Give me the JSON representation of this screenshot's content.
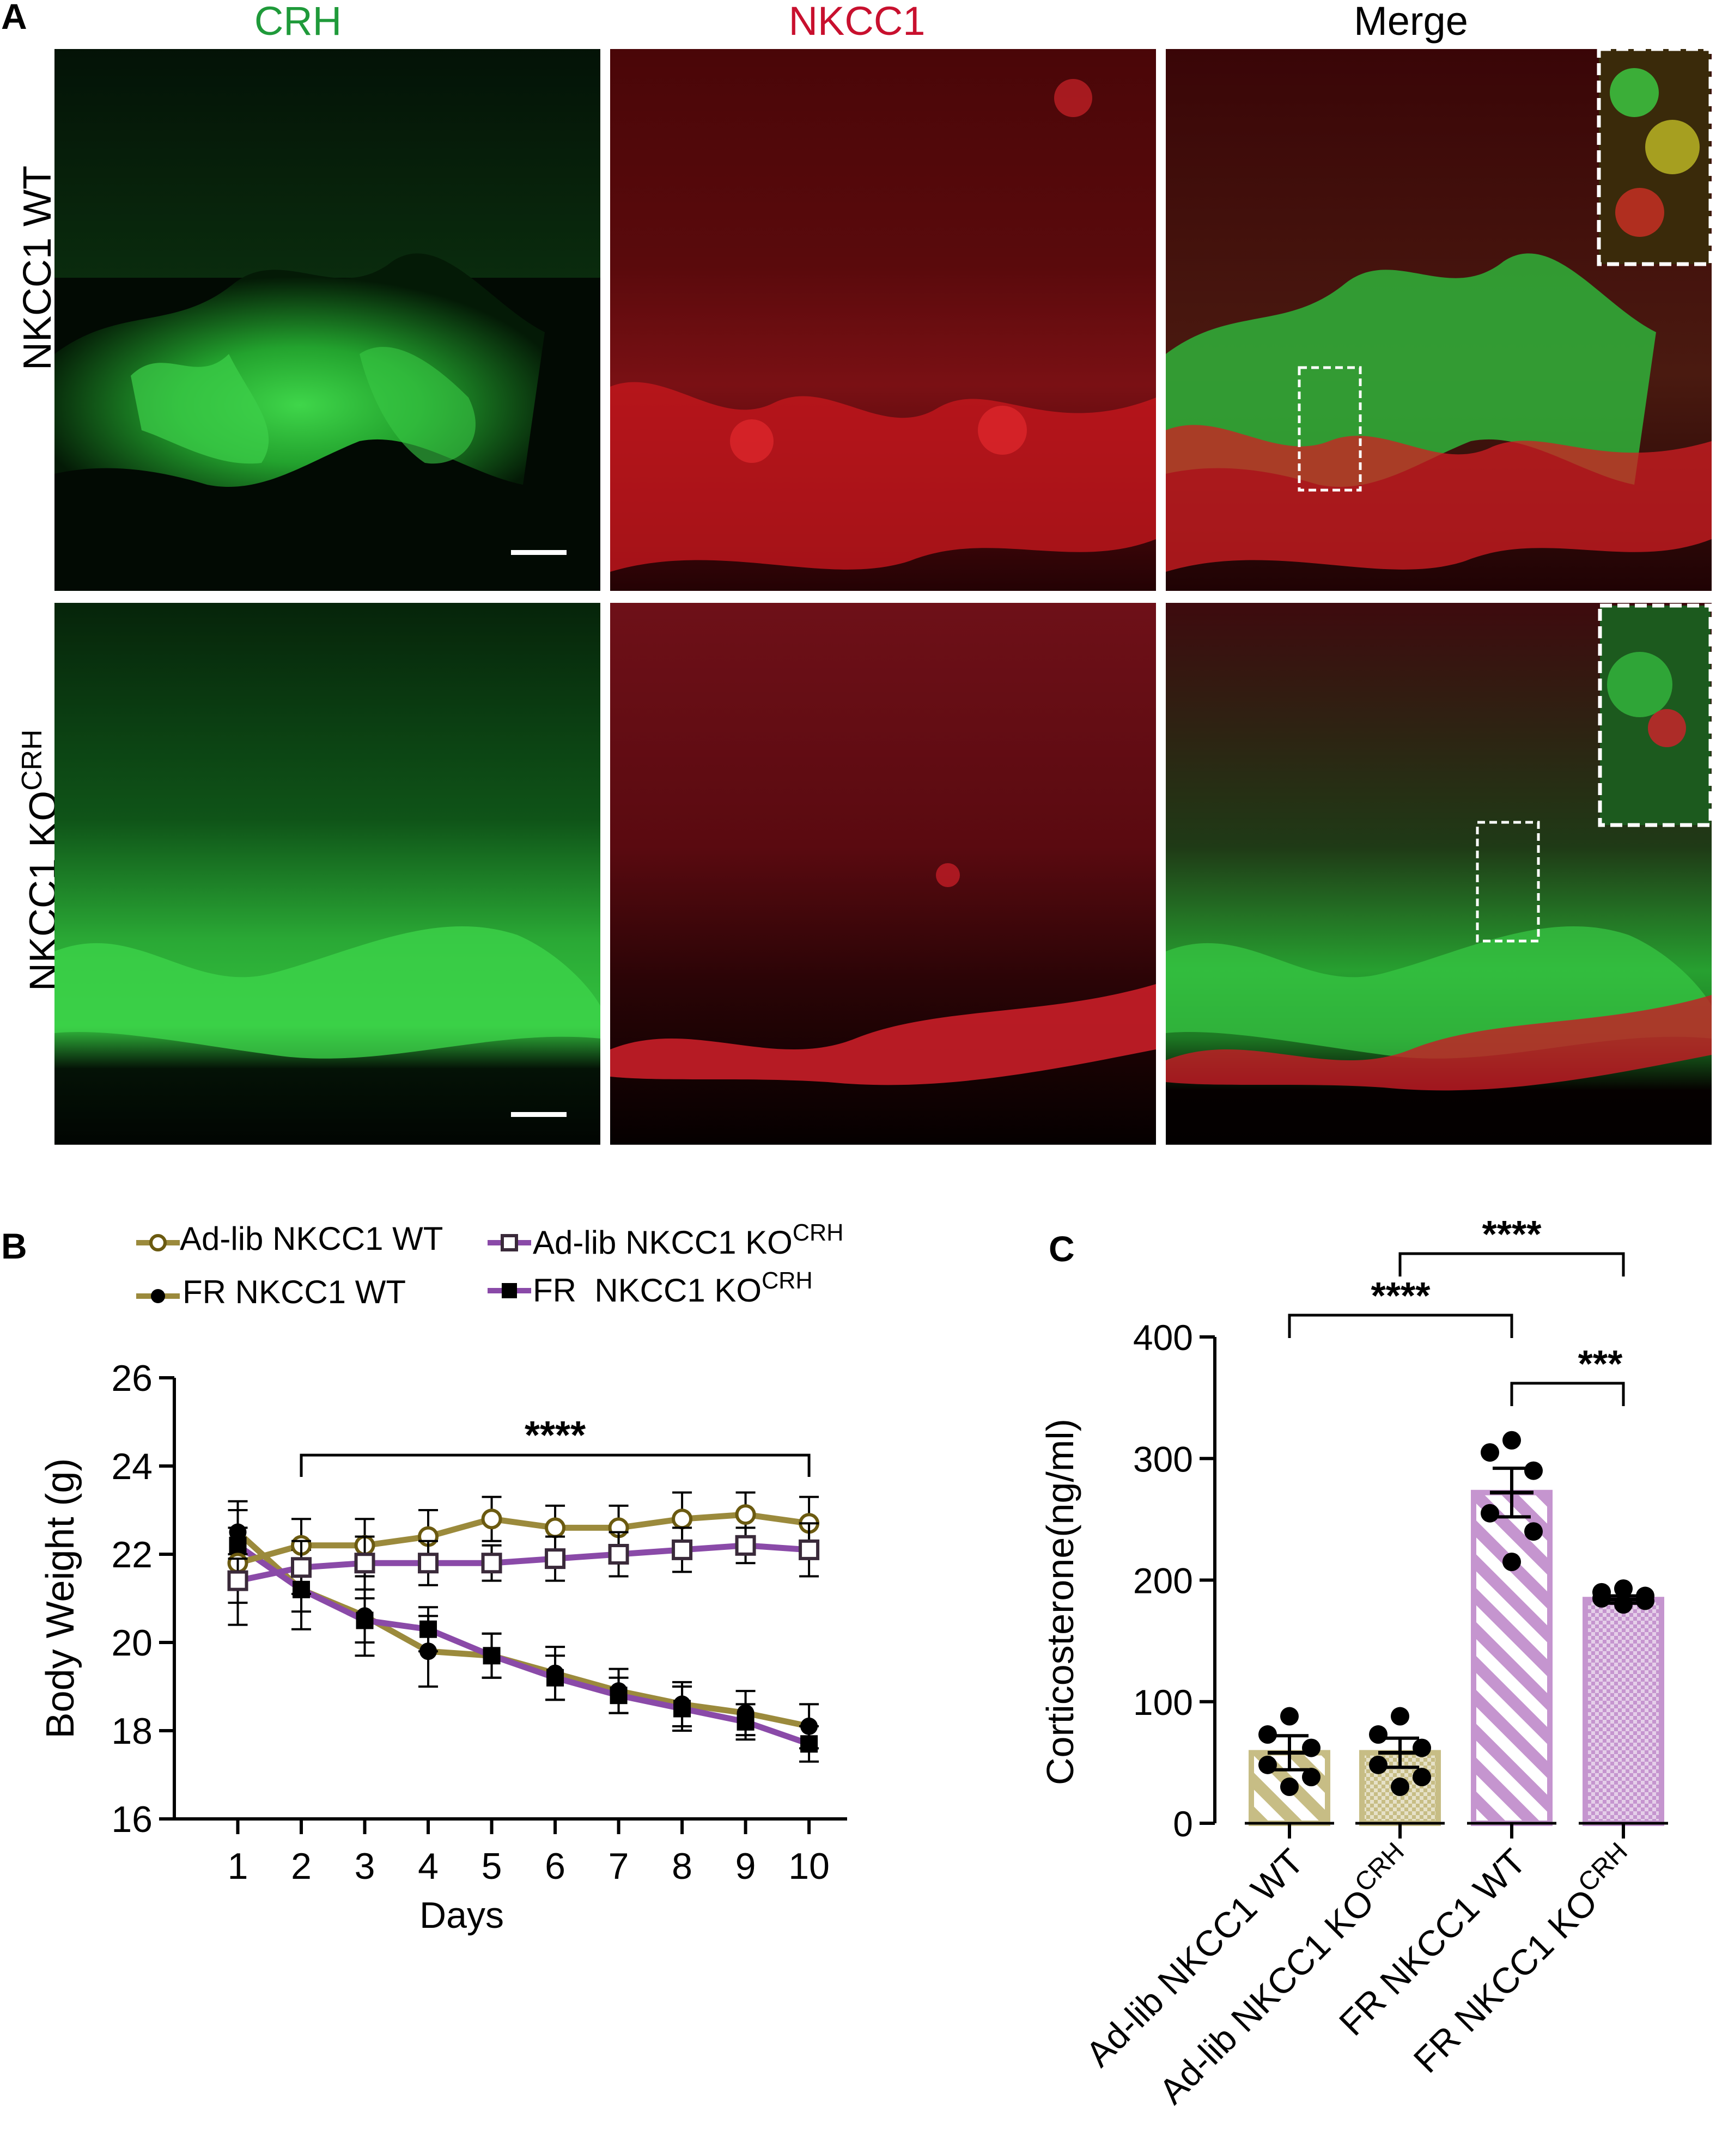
{
  "panel_a": {
    "letter": "A",
    "columns": [
      "CRH",
      "NKCC1",
      "Merge"
    ],
    "column_colors": [
      "#1f9a3a",
      "#c8102e",
      "#000000"
    ],
    "rows": [
      {
        "label": "NKCC1 WT"
      },
      {
        "label": "NKCC1 KO",
        "label_sup": "CRH"
      }
    ]
  },
  "panel_b": {
    "letter": "B",
    "legend": [
      {
        "label": "Ad-lib NKCC1 WT",
        "sup": ""
      },
      {
        "label": "Ad-lib NKCC1 KO",
        "sup": "CRH"
      },
      {
        "label": "FR NKCC1 WT",
        "sup": ""
      },
      {
        "label": "FR  NKCC1 KO",
        "sup": "CRH"
      }
    ],
    "significance": "****"
  },
  "panel_c": {
    "letter": "C",
    "significance": [
      {
        "label": "****",
        "from": 0,
        "to": 2
      },
      {
        "label": "****",
        "from": 1,
        "to": 3
      },
      {
        "label": "***",
        "from": 2,
        "to": 3
      }
    ],
    "category_labels": [
      {
        "text": "Ad-lib NKCC1 WT",
        "sup": ""
      },
      {
        "text": "Ad-lib NKCC1 KO",
        "sup": "CRH"
      },
      {
        "text": "FR NKCC1 WT",
        "sup": ""
      },
      {
        "text": "FR NKCC1 KO",
        "sup": "CRH"
      }
    ]
  },
  "colors": {
    "olive": "#9b8a3c",
    "purple": "#8a4aa8",
    "olive_fill": "#c7bd85",
    "purple_fill": "#c595cf",
    "crh_green": "#2dbf3c",
    "nkcc1_red": "#d9252b"
  },
  "chart_data": [
    {
      "type": "line",
      "panel": "B",
      "xlabel": "Days",
      "ylabel": "Body Weight (g)",
      "x": [
        1,
        2,
        3,
        4,
        5,
        6,
        7,
        8,
        9,
        10
      ],
      "xlim": [
        0.0,
        10.6
      ],
      "ylim": [
        16,
        26
      ],
      "yticks": [
        16,
        18,
        20,
        22,
        24,
        26
      ],
      "xticks": [
        1,
        2,
        3,
        4,
        5,
        6,
        7,
        8,
        9,
        10
      ],
      "significance_span": [
        2,
        10
      ],
      "series": [
        {
          "name": "Ad-lib NKCC1 WT",
          "marker": "open-circle",
          "color": "#9b8a3c",
          "values": [
            21.8,
            22.2,
            22.2,
            22.4,
            22.8,
            22.6,
            22.6,
            22.8,
            22.9,
            22.7
          ],
          "error": [
            1.4,
            0.6,
            0.6,
            0.6,
            0.5,
            0.5,
            0.5,
            0.6,
            0.5,
            0.6
          ]
        },
        {
          "name": "Ad-lib NKCC1 KOCRH",
          "marker": "open-square",
          "color": "#8a4aa8",
          "values": [
            21.4,
            21.7,
            21.8,
            21.8,
            21.8,
            21.9,
            22.0,
            22.1,
            22.2,
            22.1
          ],
          "error": [
            0.5,
            0.6,
            0.6,
            0.5,
            0.4,
            0.5,
            0.5,
            0.5,
            0.4,
            0.6
          ]
        },
        {
          "name": "FR NKCC1 WT",
          "marker": "filled-circle",
          "color": "#9b8a3c",
          "values": [
            22.5,
            21.2,
            20.6,
            19.8,
            19.7,
            19.3,
            18.9,
            18.6,
            18.4,
            18.1
          ],
          "error": [
            0.5,
            0.9,
            0.9,
            0.8,
            0.5,
            0.6,
            0.5,
            0.5,
            0.5,
            0.5
          ]
        },
        {
          "name": "FR  NKCC1 KOCRH",
          "marker": "filled-square",
          "color": "#8a4aa8",
          "values": [
            22.2,
            21.2,
            20.5,
            20.3,
            19.7,
            19.2,
            18.8,
            18.5,
            18.2,
            17.7
          ],
          "error": [
            0.4,
            0.5,
            0.5,
            0.5,
            0.5,
            0.5,
            0.4,
            0.5,
            0.4,
            0.4
          ]
        }
      ]
    },
    {
      "type": "bar",
      "panel": "C",
      "ylabel": "Corticosterone(ng/ml)",
      "ylim": [
        0,
        400
      ],
      "yticks": [
        0,
        100,
        200,
        300,
        400
      ],
      "categories": [
        "Ad-lib NKCC1 WT",
        "Ad-lib NKCC1 KOCRH",
        "FR NKCC1 WT",
        "FR NKCC1 KOCRH"
      ],
      "values": [
        58,
        58,
        272,
        184
      ],
      "error": [
        14,
        12,
        20,
        3
      ],
      "fill_pattern": [
        "hatch",
        "checker",
        "hatch",
        "checker"
      ],
      "colors": [
        "#c7bd85",
        "#c7bd85",
        "#c595cf",
        "#c595cf"
      ],
      "points": [
        [
          88,
          73,
          62,
          48,
          38,
          30
        ],
        [
          88,
          73,
          62,
          48,
          38,
          30
        ],
        [
          315,
          305,
          290,
          255,
          240,
          215
        ],
        [
          193,
          190,
          187,
          185,
          183,
          180
        ]
      ]
    }
  ]
}
